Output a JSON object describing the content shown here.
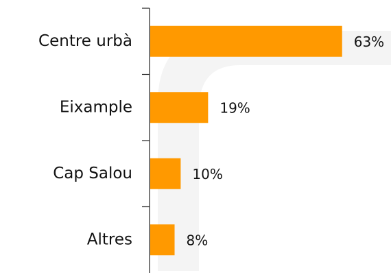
{
  "chart_data": {
    "type": "bar",
    "orientation": "horizontal",
    "categories": [
      "Centre urbà",
      "Eixample",
      "Cap Salou",
      "Altres"
    ],
    "values": [
      63,
      19,
      10,
      8
    ],
    "value_labels": [
      "63%",
      "19%",
      "10%",
      "8%"
    ],
    "color": "#ff9900"
  }
}
